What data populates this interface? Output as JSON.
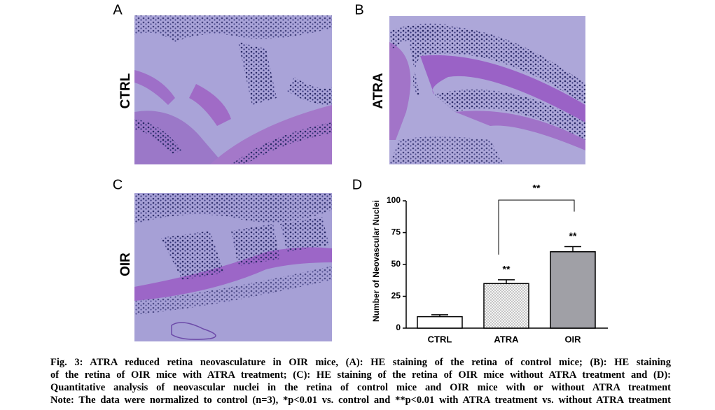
{
  "panels": [
    {
      "letter": "A",
      "label": "CTRL"
    },
    {
      "letter": "B",
      "label": "ATRA"
    },
    {
      "letter": "C",
      "label": "OIR"
    }
  ],
  "chart_data": {
    "type": "bar",
    "letter": "D",
    "ylabel": "Number of Neovascular Nuclei",
    "categories": [
      "CTRL",
      "ATRA",
      "OIR"
    ],
    "values": [
      9,
      35,
      60
    ],
    "errors": [
      1.5,
      3,
      4
    ],
    "colors": [
      "#ffffff",
      "#f2f2f2",
      "#a0a0a6"
    ],
    "dotted": [
      false,
      true,
      false
    ],
    "ylim": [
      0,
      100
    ],
    "yticks": [
      0,
      25,
      50,
      75,
      100
    ],
    "annotations": [
      "**",
      "**",
      "**"
    ]
  },
  "caption": {
    "lines": [
      "Fig. 3: ATRA reduced retina neovasculature in OIR mice, (A): HE staining of the retina of control mice; (B): HE staining",
      "of the retina of OIR mice with ATRA treatment; (C): HE staining of the retina of OIR mice without ATRA treatment and (D):",
      "Quantitative analysis of neovascular nuclei in the retina of control mice and OIR mice with or without ATRA treatment",
      "Note: The data were normalized to control (n=3), *p<0.01 vs. control and **p<0.01 with ATRA treatment vs. without ATRA treatment"
    ]
  }
}
